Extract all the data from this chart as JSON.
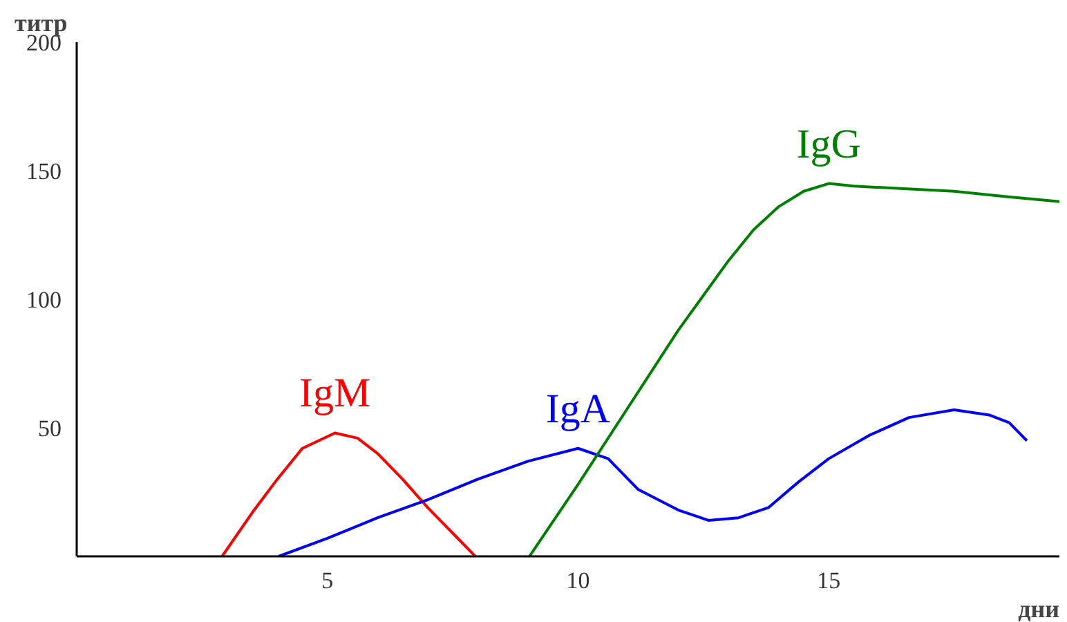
{
  "chart_data": {
    "type": "line",
    "xlabel": "дни",
    "ylabel": "титр",
    "xlim": [
      0,
      19.6
    ],
    "ylim": [
      0,
      200
    ],
    "xticks": [
      5,
      10,
      15
    ],
    "yticks": [
      50,
      100,
      150,
      200
    ],
    "grid": false,
    "marker": "none",
    "line_style": "solid",
    "series": [
      {
        "name": "IgM",
        "color": "#ff0000",
        "x": [
          2.9,
          3.5,
          4,
          4.5,
          5.15,
          5.6,
          6,
          6.5,
          7,
          7.5,
          7.95
        ],
        "values": [
          0,
          17,
          30,
          42,
          48,
          46,
          40,
          30,
          19,
          9,
          0
        ]
      },
      {
        "name": "IgA",
        "color": "#0000ff",
        "x": [
          4.03,
          5,
          6,
          7,
          8,
          9,
          10,
          10.6,
          11.2,
          12,
          12.6,
          13.2,
          13.8,
          14.4,
          15,
          15.8,
          16.6,
          17.5,
          18.2,
          18.6,
          18.95
        ],
        "values": [
          0,
          7,
          15,
          22,
          30,
          37,
          42,
          38,
          26,
          18,
          14,
          15,
          19,
          29,
          38,
          47,
          54,
          57,
          55,
          52,
          45
        ]
      },
      {
        "name": "IgG",
        "color": "#008000",
        "x": [
          9.03,
          10,
          11,
          12,
          13,
          13.5,
          14,
          14.5,
          15,
          15.5,
          16.5,
          17.5,
          18.5,
          19.6
        ],
        "values": [
          0,
          28,
          58,
          88,
          115,
          127,
          136,
          142,
          145,
          144,
          143,
          142,
          140,
          138
        ]
      }
    ]
  }
}
